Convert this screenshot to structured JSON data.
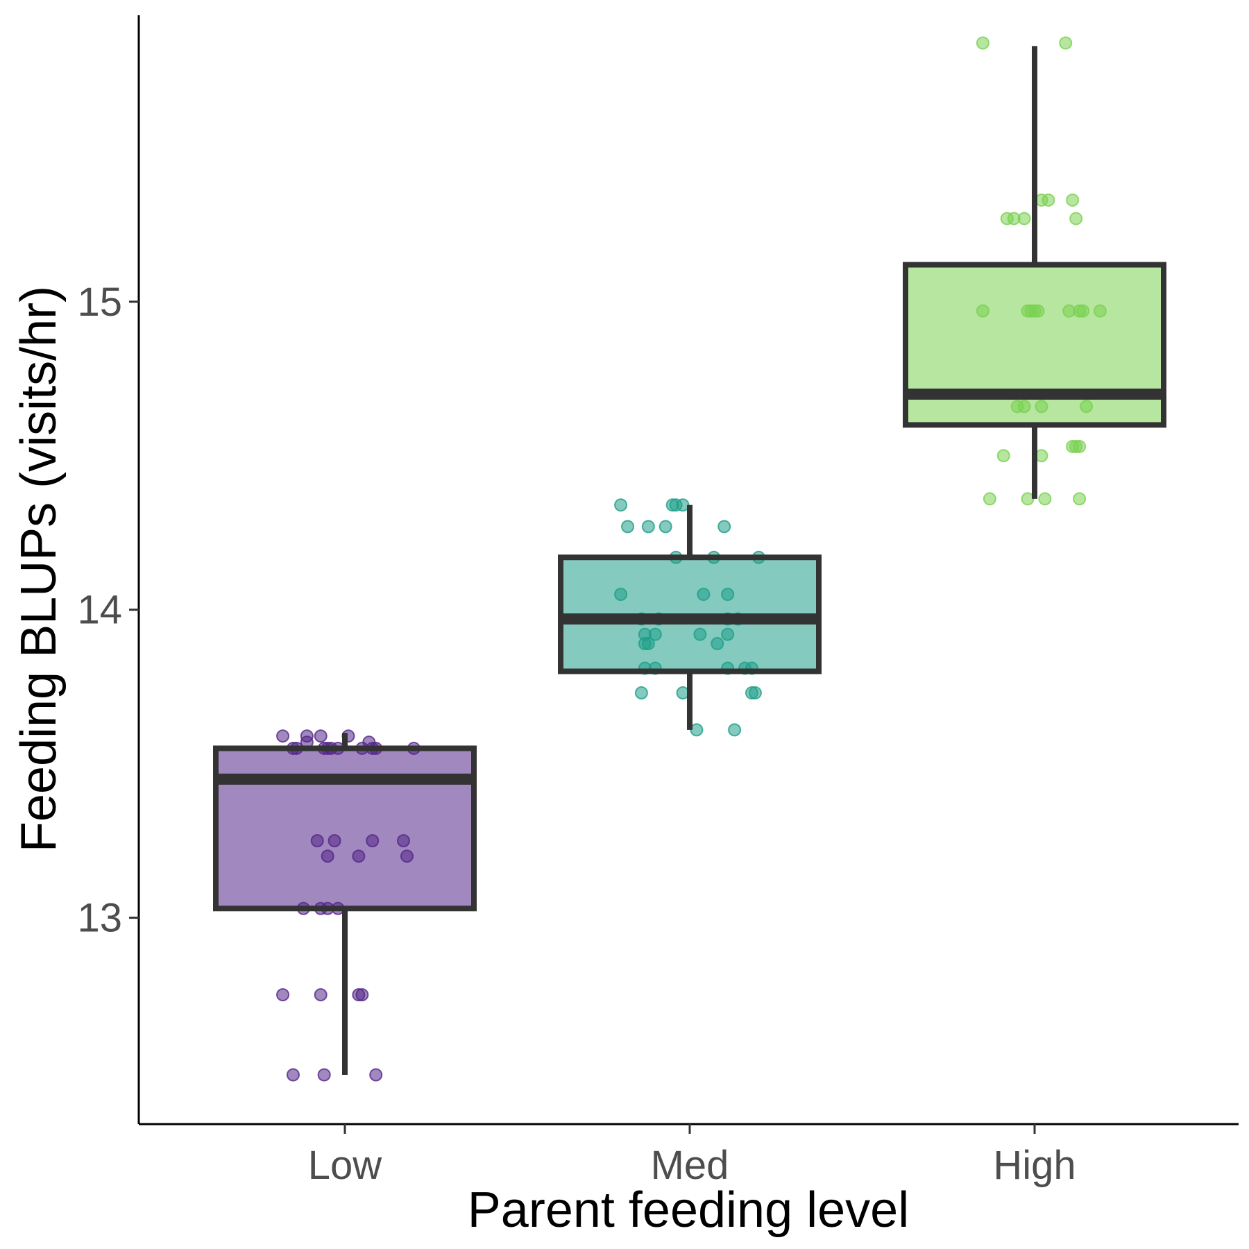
{
  "chart_data": {
    "type": "boxplot",
    "xlabel": "Parent feeding level",
    "ylabel": "Feeding BLUPs (visits/hr)",
    "categories": [
      "Low",
      "Med",
      "High"
    ],
    "ylim": [
      12.33,
      15.93
    ],
    "yticks": [
      13,
      14,
      15
    ],
    "grid": false,
    "legend": "none",
    "box_fill_opacity": 0.55,
    "outline_color": "#333333",
    "series": [
      {
        "category": "Low",
        "color": "#542788",
        "box": {
          "whisker_low": 12.49,
          "q1": 13.03,
          "median": 13.45,
          "q3": 13.55,
          "whisker_high": 13.6
        },
        "points": [
          [
            -0.18,
            13.59
          ],
          [
            -0.15,
            13.55
          ],
          [
            -0.14,
            13.55
          ],
          [
            -0.11,
            13.57
          ],
          [
            -0.11,
            13.59
          ],
          [
            -0.07,
            13.59
          ],
          [
            -0.06,
            13.55
          ],
          [
            -0.05,
            13.55
          ],
          [
            -0.04,
            13.55
          ],
          [
            -0.02,
            13.55
          ],
          [
            0.01,
            13.59
          ],
          [
            0.05,
            13.55
          ],
          [
            0.07,
            13.57
          ],
          [
            0.08,
            13.55
          ],
          [
            0.09,
            13.55
          ],
          [
            0.2,
            13.55
          ],
          [
            -0.08,
            13.25
          ],
          [
            -0.03,
            13.25
          ],
          [
            0.08,
            13.25
          ],
          [
            0.17,
            13.25
          ],
          [
            -0.05,
            13.2
          ],
          [
            0.04,
            13.2
          ],
          [
            0.18,
            13.2
          ],
          [
            -0.12,
            13.03
          ],
          [
            -0.07,
            13.03
          ],
          [
            -0.05,
            13.03
          ],
          [
            -0.02,
            13.03
          ],
          [
            -0.18,
            12.75
          ],
          [
            -0.07,
            12.75
          ],
          [
            0.04,
            12.75
          ],
          [
            0.05,
            12.75
          ],
          [
            -0.15,
            12.49
          ],
          [
            -0.06,
            12.49
          ],
          [
            0.09,
            12.49
          ]
        ]
      },
      {
        "category": "Med",
        "color": "#1f9e89",
        "box": {
          "whisker_low": 13.61,
          "q1": 13.8,
          "median": 13.97,
          "q3": 14.17,
          "whisker_high": 14.34
        },
        "points": [
          [
            -0.2,
            14.34
          ],
          [
            -0.05,
            14.34
          ],
          [
            -0.04,
            14.34
          ],
          [
            -0.02,
            14.34
          ],
          [
            -0.18,
            14.27
          ],
          [
            -0.12,
            14.27
          ],
          [
            -0.07,
            14.27
          ],
          [
            0.1,
            14.27
          ],
          [
            -0.04,
            14.17
          ],
          [
            0.07,
            14.17
          ],
          [
            0.2,
            14.17
          ],
          [
            -0.2,
            14.05
          ],
          [
            0.04,
            14.05
          ],
          [
            0.11,
            14.05
          ],
          [
            -0.14,
            13.97
          ],
          [
            -0.09,
            13.97
          ],
          [
            0.11,
            13.97
          ],
          [
            0.14,
            13.97
          ],
          [
            -0.13,
            13.92
          ],
          [
            -0.1,
            13.92
          ],
          [
            0.03,
            13.92
          ],
          [
            0.11,
            13.92
          ],
          [
            -0.12,
            13.89
          ],
          [
            -0.13,
            13.89
          ],
          [
            0.08,
            13.89
          ],
          [
            -0.13,
            13.81
          ],
          [
            -0.1,
            13.81
          ],
          [
            0.11,
            13.81
          ],
          [
            0.16,
            13.81
          ],
          [
            0.18,
            13.81
          ],
          [
            -0.14,
            13.73
          ],
          [
            -0.02,
            13.73
          ],
          [
            0.18,
            13.73
          ],
          [
            0.19,
            13.73
          ],
          [
            0.02,
            13.61
          ],
          [
            0.13,
            13.61
          ]
        ]
      },
      {
        "category": "High",
        "color": "#7ad151",
        "box": {
          "whisker_low": 14.36,
          "q1": 14.6,
          "median": 14.7,
          "q3": 15.12,
          "whisker_high": 15.83
        },
        "points": [
          [
            -0.15,
            15.84
          ],
          [
            0.09,
            15.84
          ],
          [
            0.02,
            15.33
          ],
          [
            0.04,
            15.33
          ],
          [
            0.11,
            15.33
          ],
          [
            -0.08,
            15.27
          ],
          [
            -0.06,
            15.27
          ],
          [
            -0.03,
            15.27
          ],
          [
            0.12,
            15.27
          ],
          [
            -0.15,
            14.97
          ],
          [
            -0.02,
            14.97
          ],
          [
            -0.01,
            14.97
          ],
          [
            0.0,
            14.97
          ],
          [
            0.01,
            14.97
          ],
          [
            0.1,
            14.97
          ],
          [
            0.13,
            14.97
          ],
          [
            0.14,
            14.97
          ],
          [
            0.19,
            14.97
          ],
          [
            -0.05,
            14.66
          ],
          [
            -0.03,
            14.66
          ],
          [
            0.02,
            14.66
          ],
          [
            0.15,
            14.66
          ],
          [
            -0.09,
            14.5
          ],
          [
            0.02,
            14.5
          ],
          [
            0.11,
            14.53
          ],
          [
            0.12,
            14.53
          ],
          [
            0.13,
            14.53
          ],
          [
            -0.13,
            14.36
          ],
          [
            -0.02,
            14.36
          ],
          [
            0.03,
            14.36
          ],
          [
            0.13,
            14.36
          ]
        ]
      }
    ]
  }
}
